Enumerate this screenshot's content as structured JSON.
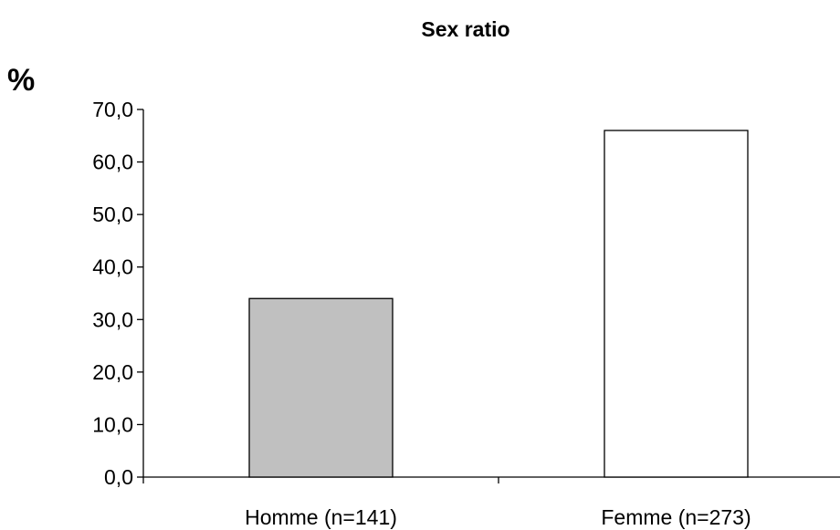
{
  "chart_data": {
    "type": "bar",
    "title": "Sex ratio",
    "ylabel": "%",
    "xlabel": "",
    "categories": [
      "Homme (n=141)",
      "Femme (n=273)"
    ],
    "values": [
      34.0,
      66.0
    ],
    "bar_colors": [
      "#c0c0c0",
      "#ffffff"
    ],
    "ylim": [
      0,
      70
    ],
    "yticks": [
      0,
      10,
      20,
      30,
      40,
      50,
      60,
      70
    ],
    "ytick_labels": [
      "0,0",
      "10,0",
      "20,0",
      "30,0",
      "40,0",
      "50,0",
      "60,0",
      "70,0"
    ],
    "grid": false,
    "legend": false
  }
}
